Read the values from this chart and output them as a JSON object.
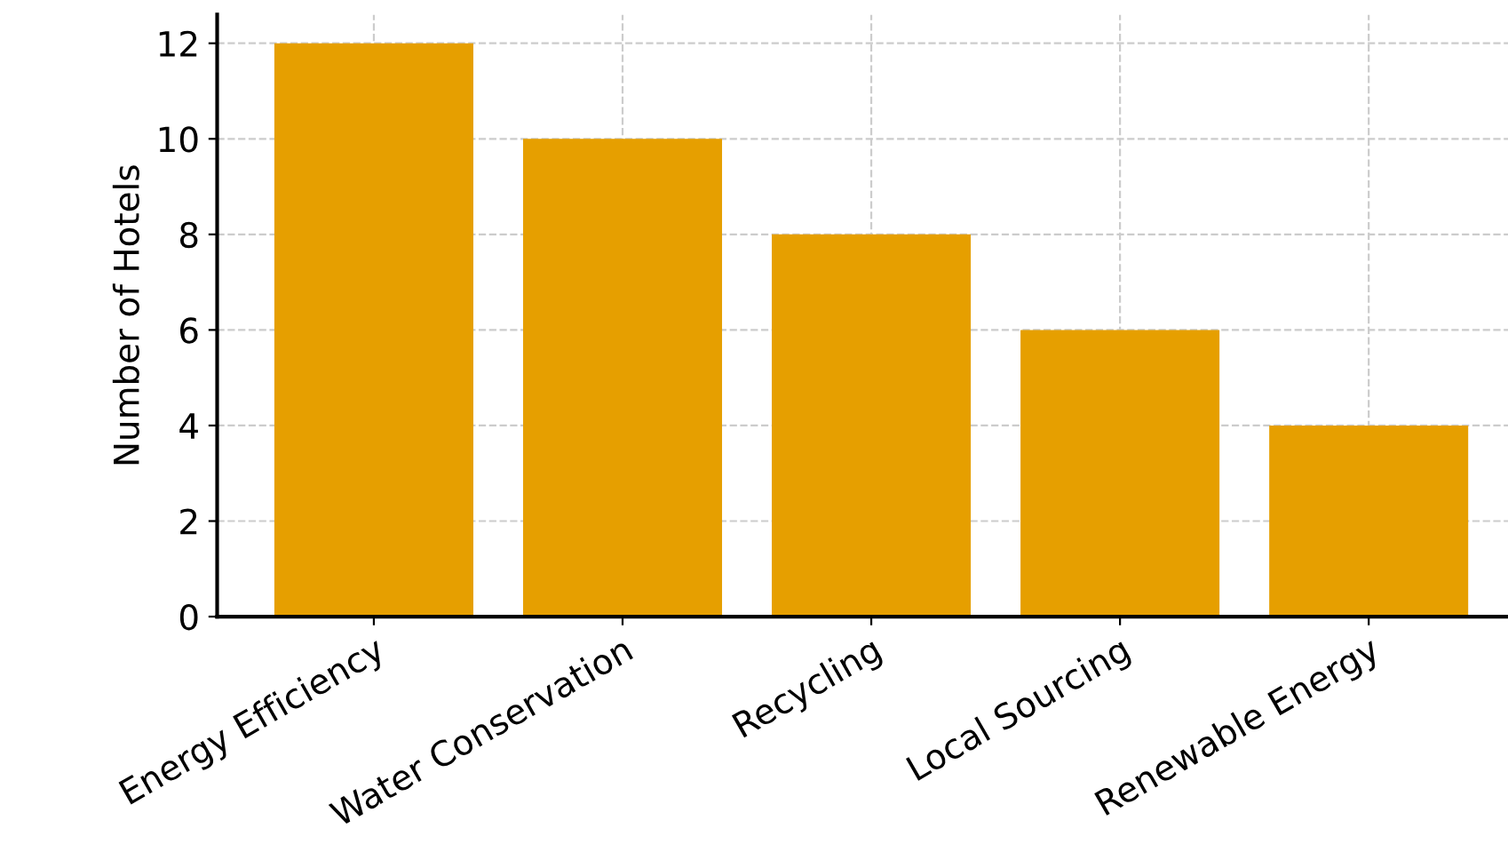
{
  "chart_data": {
    "type": "bar",
    "ylabel": "Number of Hotels",
    "categories": [
      "Energy Efficiency",
      "Water Conservation",
      "Recycling",
      "Local Sourcing",
      "Renewable Energy"
    ],
    "values": [
      12,
      10,
      8,
      6,
      4
    ],
    "color": "#e69f00",
    "ylim": [
      0,
      12.6
    ],
    "yticks": [
      0,
      2,
      4,
      6,
      8,
      10,
      12
    ],
    "grid": true
  }
}
